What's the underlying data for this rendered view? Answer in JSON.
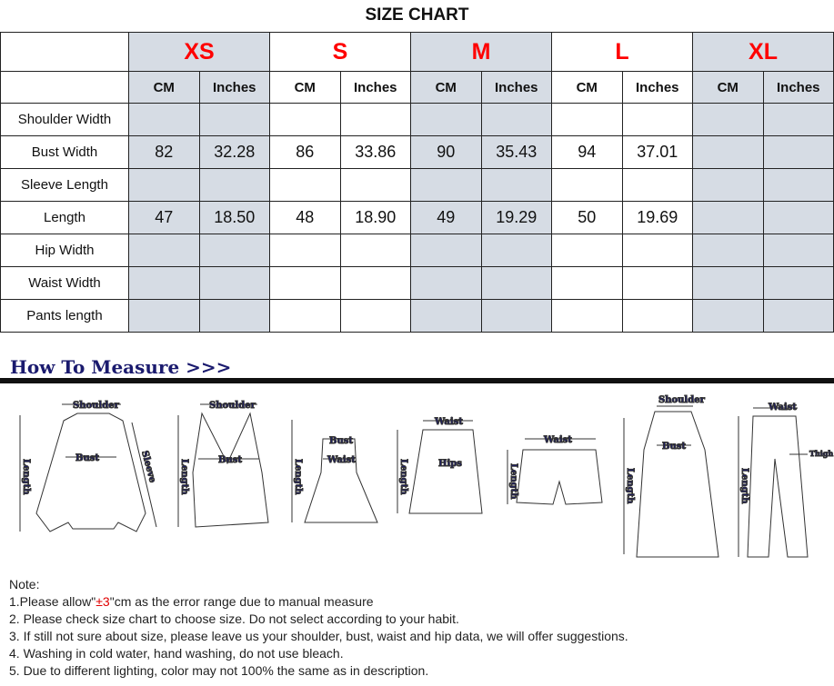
{
  "title": "SIZE CHART",
  "sizes": [
    "XS",
    "S",
    "M",
    "L",
    "XL"
  ],
  "units": [
    "CM",
    "Inches"
  ],
  "rows": [
    {
      "label": "Shoulder Width",
      "values": [
        "",
        "",
        "",
        "",
        "",
        "",
        "",
        "",
        "",
        ""
      ]
    },
    {
      "label": "Bust Width",
      "values": [
        "82",
        "32.28",
        "86",
        "33.86",
        "90",
        "35.43",
        "94",
        "37.01",
        "",
        ""
      ]
    },
    {
      "label": "Sleeve Length",
      "values": [
        "",
        "",
        "",
        "",
        "",
        "",
        "",
        "",
        "",
        ""
      ]
    },
    {
      "label": "Length",
      "values": [
        "47",
        "18.50",
        "48",
        "18.90",
        "49",
        "19.29",
        "50",
        "19.69",
        "",
        ""
      ]
    },
    {
      "label": "Hip Width",
      "values": [
        "",
        "",
        "",
        "",
        "",
        "",
        "",
        "",
        "",
        ""
      ]
    },
    {
      "label": "Waist Width",
      "values": [
        "",
        "",
        "",
        "",
        "",
        "",
        "",
        "",
        "",
        ""
      ]
    },
    {
      "label": "Pants length",
      "values": [
        "",
        "",
        "",
        "",
        "",
        "",
        "",
        "",
        "",
        ""
      ]
    }
  ],
  "colors": {
    "size_label": "#ff0000",
    "shaded_column": "#d6dce4",
    "measure_heading": "#1a1a6e"
  },
  "how_to_measure": "How To Measure >>>",
  "figure_labels": {
    "shoulder": "Shoulder",
    "bust": "Bust",
    "sleeve": "Sleeve",
    "length": "Length",
    "waist": "Waist",
    "hips": "Hips",
    "thigh": "Thigh"
  },
  "notes": {
    "heading": "Note:",
    "line1_pre": "1.Please allow\"",
    "line1_red": "±3",
    "line1_post": "\"cm as the error range due to manual measure",
    "line2": "2. Please check size chart to choose size. Do not select according to your habit.",
    "line3": "3. If still not sure about size, please leave us your shoulder, bust, waist and hip data, we will offer suggestions.",
    "line4": "4. Washing in cold water, hand washing, do not use bleach.",
    "line5": "5. Due to different lighting, color may not 100% the same as in description."
  }
}
